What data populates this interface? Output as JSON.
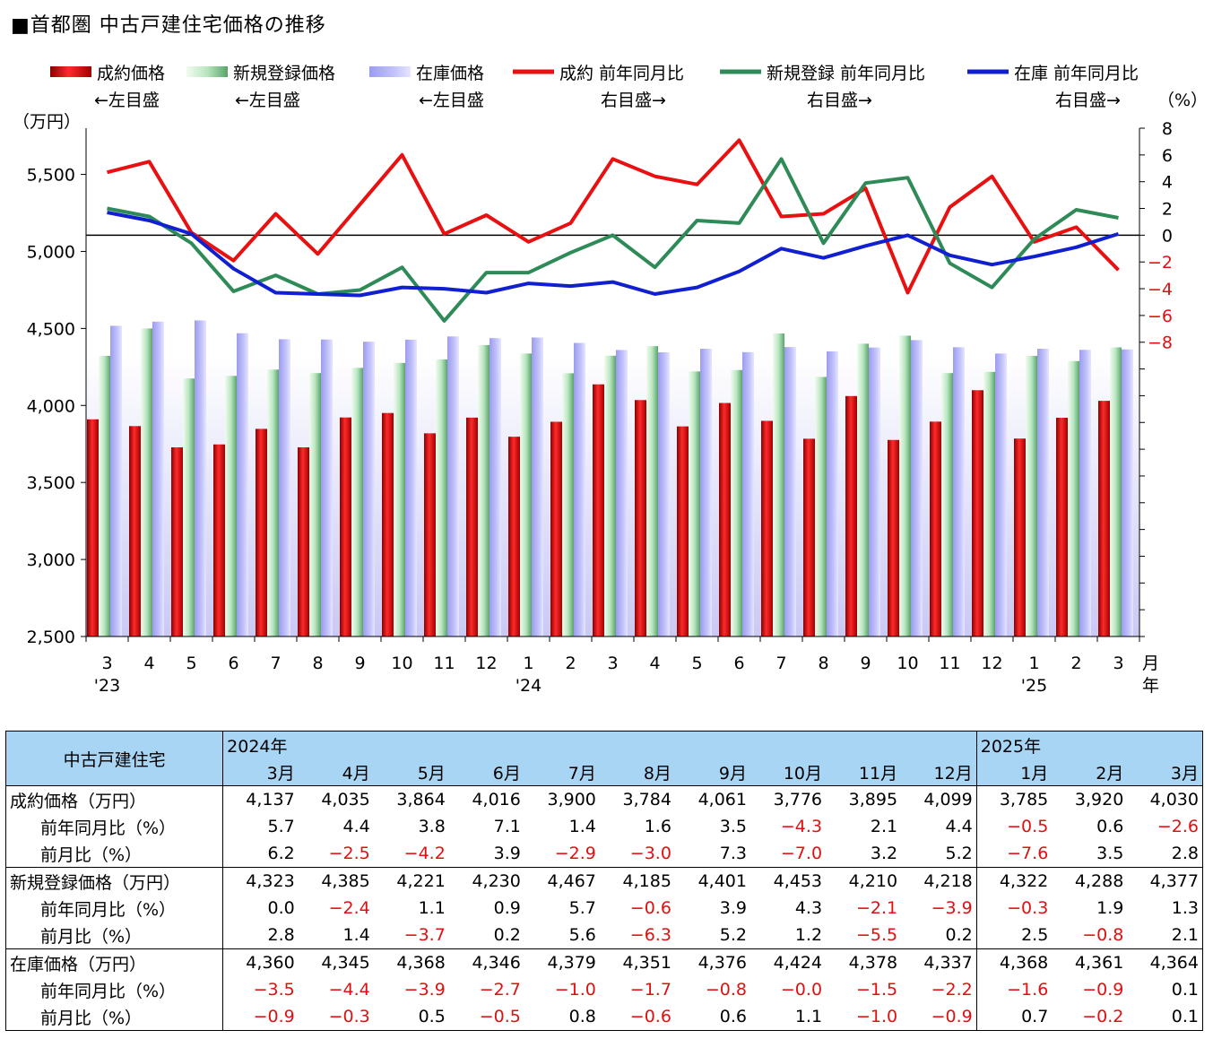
{
  "title": "■首都圏 中古戸建住宅価格の推移",
  "chart_data": {
    "type": "bar",
    "categories": [
      "3",
      "4",
      "5",
      "6",
      "7",
      "8",
      "9",
      "10",
      "11",
      "12",
      "1",
      "2",
      "3",
      "4",
      "5",
      "6",
      "7",
      "8",
      "9",
      "10",
      "11",
      "12",
      "1",
      "2",
      "3"
    ],
    "year_labels": [
      "'23",
      "",
      "",
      "",
      "",
      "",
      "",
      "",
      "",
      "",
      "'24",
      "",
      "",
      "",
      "",
      "",
      "",
      "",
      "",
      "",
      "",
      "",
      "'25",
      "",
      ""
    ],
    "x_unit_top": "月",
    "x_unit_bottom": "年",
    "left_axis": {
      "unit": "（万円）",
      "min": 2500,
      "max": 5800,
      "ticks": [
        2500,
        3000,
        3500,
        4000,
        4500,
        5000,
        5500
      ],
      "tick_labels": [
        "2,500",
        "3,000",
        "3,500",
        "4,000",
        "4,500",
        "5,000",
        "5,500"
      ]
    },
    "right_axis": {
      "unit": "（%）",
      "min": -30,
      "max": 8,
      "ticks": [
        8,
        6,
        4,
        2,
        0,
        -2,
        -4,
        -6,
        -8
      ],
      "tick_labels": [
        "8",
        "6",
        "4",
        "2",
        "0",
        "−2",
        "−4",
        "−6",
        "−8"
      ],
      "reference_line": 0
    },
    "legend": [
      {
        "label": "成約価格",
        "note": "←左目盛",
        "kind": "bar",
        "color": "#e00000"
      },
      {
        "label": "新規登録価格",
        "note": "←左目盛",
        "kind": "bar",
        "color": "#8fd49a"
      },
      {
        "label": "在庫価格",
        "note": "←左目盛",
        "kind": "bar",
        "color": "#a8a8f2"
      },
      {
        "label": "成約 前年同月比",
        "note": "右目盛→",
        "kind": "line",
        "color": "#e81010"
      },
      {
        "label": "新規登録 前年同月比",
        "note": "右目盛→",
        "kind": "line",
        "color": "#2e8b57"
      },
      {
        "label": "在庫 前年同月比",
        "note": "右目盛→",
        "kind": "line",
        "color": "#1020d0"
      }
    ],
    "series": [
      {
        "name": "成約価格",
        "axis": "left",
        "kind": "bar",
        "color": "#e00000",
        "values": [
          3910,
          3866,
          3728,
          3747,
          3848,
          3728,
          3922,
          3951,
          3819,
          3921,
          3797,
          3894,
          4137,
          4035,
          3864,
          4016,
          3900,
          3784,
          4061,
          3776,
          3895,
          4099,
          3785,
          3920,
          4030
        ]
      },
      {
        "name": "新規登録価格",
        "axis": "left",
        "kind": "bar",
        "color": "#8fd49a",
        "values": [
          4322,
          4500,
          4175,
          4192,
          4233,
          4210,
          4244,
          4276,
          4299,
          4392,
          4337,
          4209,
          4323,
          4385,
          4221,
          4230,
          4467,
          4185,
          4401,
          4453,
          4210,
          4218,
          4322,
          4288,
          4377
        ]
      },
      {
        "name": "在庫価格",
        "axis": "left",
        "kind": "bar",
        "color": "#a8a8f2",
        "values": [
          4517,
          4544,
          4552,
          4469,
          4430,
          4428,
          4414,
          4427,
          4448,
          4437,
          4441,
          4406,
          4360,
          4345,
          4368,
          4346,
          4379,
          4351,
          4376,
          4424,
          4378,
          4337,
          4368,
          4361,
          4364
        ]
      },
      {
        "name": "成約 前年同月比",
        "axis": "right",
        "kind": "line",
        "color": "#e81010",
        "values": [
          4.7,
          5.5,
          0.2,
          -1.9,
          1.6,
          -1.4,
          2.3,
          6.0,
          0.1,
          1.5,
          -0.5,
          0.9,
          5.7,
          4.4,
          3.8,
          7.1,
          1.4,
          1.6,
          3.5,
          -4.3,
          2.1,
          4.4,
          -0.5,
          0.6,
          -2.6
        ]
      },
      {
        "name": "新規登録 前年同月比",
        "axis": "right",
        "kind": "line",
        "color": "#2e8b57",
        "values": [
          2.0,
          1.4,
          -0.6,
          -4.2,
          -3.0,
          -4.4,
          -4.1,
          -2.4,
          -6.4,
          -2.8,
          -2.8,
          -1.3,
          0.0,
          -2.4,
          1.1,
          0.9,
          5.7,
          -0.6,
          3.9,
          4.3,
          -2.1,
          -3.9,
          -0.3,
          1.9,
          1.3
        ]
      },
      {
        "name": "在庫 前年同月比",
        "axis": "right",
        "kind": "line",
        "color": "#1020d0",
        "values": [
          1.7,
          1.1,
          0.1,
          -2.5,
          -4.3,
          -4.4,
          -4.5,
          -3.9,
          -4.0,
          -4.3,
          -3.6,
          -3.8,
          -3.5,
          -4.4,
          -3.9,
          -2.7,
          -1.0,
          -1.7,
          -0.8,
          -0.0,
          -1.5,
          -2.2,
          -1.6,
          -0.9,
          0.1
        ]
      }
    ]
  },
  "table": {
    "corner": "中古戸建住宅",
    "year_2024": "2024年",
    "year_2025": "2025年",
    "months": [
      "3月",
      "4月",
      "5月",
      "6月",
      "7月",
      "8月",
      "9月",
      "10月",
      "11月",
      "12月",
      "1月",
      "2月",
      "3月"
    ],
    "rows": [
      {
        "label": "成約価格（万円）",
        "indent": false,
        "values": [
          "4,137",
          "4,035",
          "3,864",
          "4,016",
          "3,900",
          "3,784",
          "4,061",
          "3,776",
          "3,895",
          "4,099",
          "3,785",
          "3,920",
          "4,030"
        ]
      },
      {
        "label": "前年同月比（%）",
        "indent": true,
        "values": [
          "5.7",
          "4.4",
          "3.8",
          "7.1",
          "1.4",
          "1.6",
          "3.5",
          "−4.3",
          "2.1",
          "4.4",
          "−0.5",
          "0.6",
          "−2.6"
        ]
      },
      {
        "label": "前月比（%）",
        "indent": true,
        "values": [
          "6.2",
          "−2.5",
          "−4.2",
          "3.9",
          "−2.9",
          "−3.0",
          "7.3",
          "−7.0",
          "3.2",
          "5.2",
          "−7.6",
          "3.5",
          "2.8"
        ]
      },
      {
        "label": "新規登録価格（万円）",
        "indent": false,
        "values": [
          "4,323",
          "4,385",
          "4,221",
          "4,230",
          "4,467",
          "4,185",
          "4,401",
          "4,453",
          "4,210",
          "4,218",
          "4,322",
          "4,288",
          "4,377"
        ]
      },
      {
        "label": "前年同月比（%）",
        "indent": true,
        "values": [
          "0.0",
          "−2.4",
          "1.1",
          "0.9",
          "5.7",
          "−0.6",
          "3.9",
          "4.3",
          "−2.1",
          "−3.9",
          "−0.3",
          "1.9",
          "1.3"
        ]
      },
      {
        "label": "前月比（%）",
        "indent": true,
        "values": [
          "2.8",
          "1.4",
          "−3.7",
          "0.2",
          "5.6",
          "−6.3",
          "5.2",
          "1.2",
          "−5.5",
          "0.2",
          "2.5",
          "−0.8",
          "2.1"
        ]
      },
      {
        "label": "在庫価格（万円）",
        "indent": false,
        "values": [
          "4,360",
          "4,345",
          "4,368",
          "4,346",
          "4,379",
          "4,351",
          "4,376",
          "4,424",
          "4,378",
          "4,337",
          "4,368",
          "4,361",
          "4,364"
        ]
      },
      {
        "label": "前年同月比（%）",
        "indent": true,
        "values": [
          "−3.5",
          "−4.4",
          "−3.9",
          "−2.7",
          "−1.0",
          "−1.7",
          "−0.8",
          "−0.0",
          "−1.5",
          "−2.2",
          "−1.6",
          "−0.9",
          "0.1"
        ]
      },
      {
        "label": "前月比（%）",
        "indent": true,
        "values": [
          "−0.9",
          "−0.3",
          "0.5",
          "−0.5",
          "0.8",
          "−0.6",
          "0.6",
          "1.1",
          "−1.0",
          "−0.9",
          "0.7",
          "−0.2",
          "0.1"
        ]
      }
    ]
  }
}
